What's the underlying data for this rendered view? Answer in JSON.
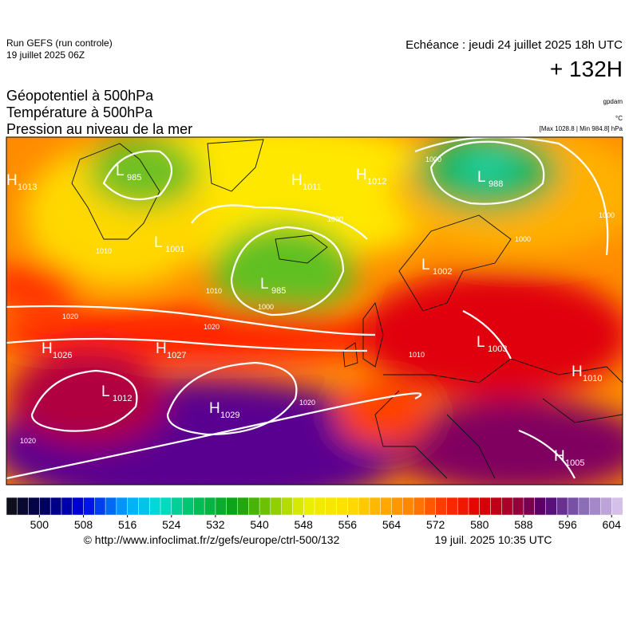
{
  "header": {
    "run": "Run GEFS (run controle)",
    "run_date": "19 juillet 2025 06Z",
    "valid": "Echéance : jeudi 24 juillet 2025 18h UTC",
    "lead": "+ 132H",
    "titles": [
      "Géopotentiel à 500hPa",
      "Température à 500hPa",
      "Pression au niveau de la mer"
    ],
    "units": [
      "gpdam",
      "°C",
      "[Max 1028.8 | Min 984.8] hPa"
    ]
  },
  "map": {
    "centers": [
      {
        "kind": "H",
        "value": 1013
      },
      {
        "kind": "L",
        "value": 985
      },
      {
        "kind": "H",
        "value": 1011
      },
      {
        "kind": "H",
        "value": 1012
      },
      {
        "kind": "L",
        "value": 988
      },
      {
        "kind": "L",
        "value": 1001
      },
      {
        "kind": "L",
        "value": 985
      },
      {
        "kind": "L",
        "value": 1002
      },
      {
        "kind": "H",
        "value": 1026
      },
      {
        "kind": "H",
        "value": 1027
      },
      {
        "kind": "L",
        "value": 1003
      },
      {
        "kind": "H",
        "value": 1010
      },
      {
        "kind": "L",
        "value": 1012
      },
      {
        "kind": "H",
        "value": 1029
      },
      {
        "kind": "H",
        "value": 1005
      }
    ],
    "isobar_labels": [
      1010,
      1010,
      1020,
      1020,
      1000,
      1000,
      1000,
      1000,
      1000,
      1020,
      1020,
      1010
    ]
  },
  "colorbar": {
    "range": [
      494,
      606
    ],
    "step": 2,
    "ticks": [
      500,
      508,
      516,
      524,
      532,
      540,
      548,
      556,
      564,
      572,
      580,
      588,
      596,
      604
    ],
    "stops": [
      [
        494,
        "#111111"
      ],
      [
        500,
        "#000050"
      ],
      [
        508,
        "#0000e0"
      ],
      [
        516,
        "#00aaff"
      ],
      [
        522,
        "#00e0d0"
      ],
      [
        528,
        "#00c060"
      ],
      [
        536,
        "#10a010"
      ],
      [
        542,
        "#80c800"
      ],
      [
        548,
        "#e8f000"
      ],
      [
        556,
        "#ffe000"
      ],
      [
        562,
        "#ffb000"
      ],
      [
        568,
        "#ff8000"
      ],
      [
        574,
        "#ff3000"
      ],
      [
        580,
        "#e00000"
      ],
      [
        586,
        "#a00030"
      ],
      [
        592,
        "#500070"
      ],
      [
        598,
        "#8060b0"
      ],
      [
        604,
        "#c8b0e0"
      ],
      [
        606,
        "#e0d0f0"
      ]
    ]
  },
  "footer": {
    "source": "© http://www.infoclimat.fr/z/gefs/europe/ctrl-500/132",
    "generated": "19 juil. 2025 10:35 UTC"
  }
}
